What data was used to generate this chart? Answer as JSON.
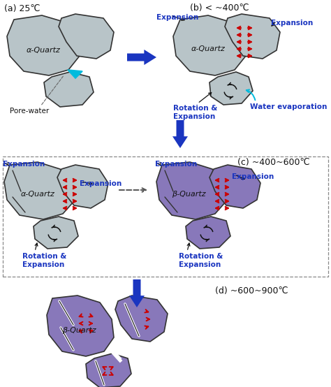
{
  "bg_color": "#ffffff",
  "gray_color": "#b8c4c8",
  "purple_color": "#8878ba",
  "blue_color": "#1a35c0",
  "red_color": "#cc0000",
  "black_color": "#111111",
  "cyan_color": "#00bbdd",
  "white_color": "#ffffff",
  "dark_edge": "#333333",
  "title_a": "(a) 25℃",
  "title_b": "(b) < ~400℃",
  "title_c": "(c) ~400~600℃",
  "title_d": "(d) ~600~900℃",
  "lbl_alpha": "α-Quartz",
  "lbl_beta": "β-Quartz",
  "lbl_pore": "Pore-water",
  "lbl_exp": "Expansion",
  "lbl_rot": "Rotation &\nExpansion",
  "lbl_water": "Water evaporation"
}
